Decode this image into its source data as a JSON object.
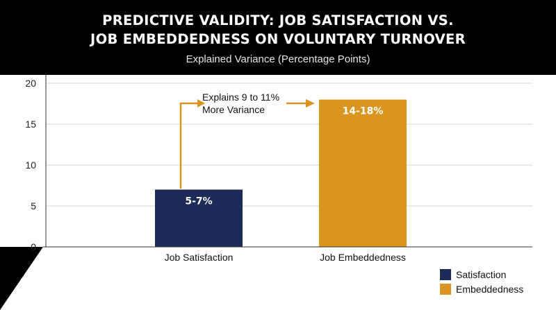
{
  "chart_data": {
    "type": "bar",
    "title_lines": [
      "PREDICTIVE VALIDITY: JOB SATISFACTION VS.",
      "JOB EMBEDDEDNESS ON VOLUNTARY TURNOVER"
    ],
    "subtitle": "Explained Variance (Percentage Points)",
    "categories": [
      "Job Satisfaction",
      "Job Embeddedness"
    ],
    "values": [
      7,
      18
    ],
    "data_labels": [
      "5-7%",
      "14-18%"
    ],
    "colors": [
      "#1c2b58",
      "#d9951f"
    ],
    "ylim": [
      0,
      20
    ],
    "yticks": [
      0,
      5,
      10,
      15,
      20
    ],
    "grid": true,
    "legend": {
      "placement": "bottom-right",
      "items": [
        {
          "label": "Satisfaction",
          "color": "#1c2b58"
        },
        {
          "label": "Embeddedness",
          "color": "#d9951f"
        }
      ]
    },
    "annotation": {
      "lines": [
        "Explains 9 to 11%",
        "More Variance"
      ],
      "color": "#d9951f"
    }
  }
}
